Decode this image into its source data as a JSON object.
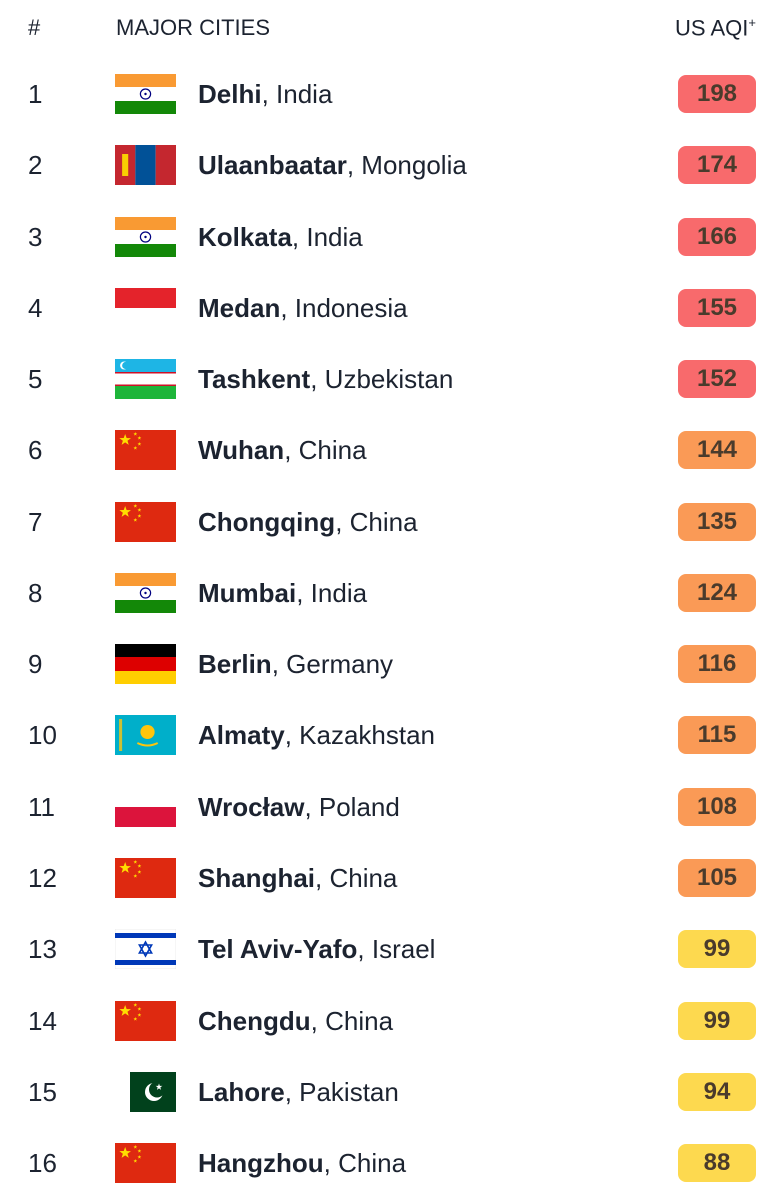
{
  "header": {
    "rank": "#",
    "cities": "MAJOR CITIES",
    "aqi": "US AQI",
    "aqi_mark": "+"
  },
  "rows": [
    {
      "rank": "1",
      "city": "Delhi",
      "country": ", India",
      "aqi": "198",
      "color": "#f86a6c"
    },
    {
      "rank": "2",
      "city": "Ulaanbaatar",
      "country": ", Mongolia",
      "aqi": "174",
      "color": "#f86a6c"
    },
    {
      "rank": "3",
      "city": "Kolkata",
      "country": ", India",
      "aqi": "166",
      "color": "#f86a6c"
    },
    {
      "rank": "4",
      "city": "Medan",
      "country": ", Indonesia",
      "aqi": "155",
      "color": "#f86a6c"
    },
    {
      "rank": "5",
      "city": "Tashkent",
      "country": ", Uzbekistan",
      "aqi": "152",
      "color": "#f86a6c"
    },
    {
      "rank": "6",
      "city": "Wuhan",
      "country": ", China",
      "aqi": "144",
      "color": "#fa9a56"
    },
    {
      "rank": "7",
      "city": "Chongqing",
      "country": ", China",
      "aqi": "135",
      "color": "#fa9a56"
    },
    {
      "rank": "8",
      "city": "Mumbai",
      "country": ", India",
      "aqi": "124",
      "color": "#fa9a56"
    },
    {
      "rank": "9",
      "city": "Berlin",
      "country": ", Germany",
      "aqi": "116",
      "color": "#fa9a56"
    },
    {
      "rank": "10",
      "city": "Almaty",
      "country": ", Kazakhstan",
      "aqi": "115",
      "color": "#fa9a56"
    },
    {
      "rank": "11",
      "city": "Wrocław",
      "country": ", Poland",
      "aqi": "108",
      "color": "#fa9a56"
    },
    {
      "rank": "12",
      "city": "Shanghai",
      "country": ", China",
      "aqi": "105",
      "color": "#fa9a56"
    },
    {
      "rank": "13",
      "city": "Tel Aviv-Yafo",
      "country": ", Israel",
      "aqi": "99",
      "color": "#fdd94f"
    },
    {
      "rank": "14",
      "city": "Chengdu",
      "country": ", China",
      "aqi": "99",
      "color": "#fdd94f"
    },
    {
      "rank": "15",
      "city": "Lahore",
      "country": ", Pakistan",
      "aqi": "94",
      "color": "#fdd94f"
    },
    {
      "rank": "16",
      "city": "Hangzhou",
      "country": ", China",
      "aqi": "88",
      "color": "#fdd94f"
    }
  ]
}
